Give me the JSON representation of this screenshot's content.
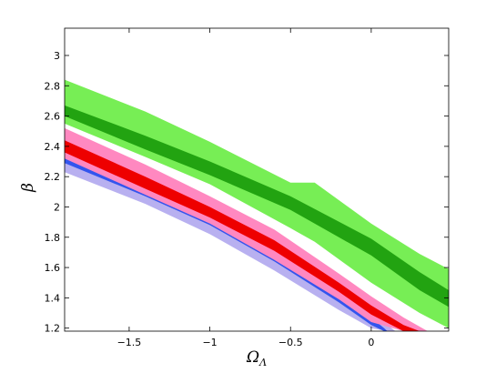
{
  "chart_data": {
    "type": "area",
    "title": "",
    "xlabel": "Ω_Λ",
    "xlabel_main": "Ω",
    "xlabel_sub": "Λ",
    "ylabel": "β",
    "xlim": [
      -1.9,
      0.48
    ],
    "ylim": [
      1.18,
      3.18
    ],
    "xticks": [
      -1.5,
      -1,
      -0.5,
      0
    ],
    "xtick_labels": [
      "−1.5",
      "−1",
      "−0.5",
      "0"
    ],
    "yticks": [
      1.2,
      1.4,
      1.6,
      1.8,
      2,
      2.2,
      2.4,
      2.6,
      2.8,
      3
    ],
    "ytick_labels": [
      "1.2",
      "1.4",
      "1.6",
      "1.8",
      "2",
      "2.2",
      "2.4",
      "2.6",
      "2.8",
      "3"
    ],
    "grid": false,
    "legend": "none",
    "colors": {
      "green_outer": "#77ee55",
      "green_inner": "#22a311",
      "blue_outer": "#b8b0f0",
      "blue_inner": "#3355ee",
      "red_outer": "#ff88c0",
      "red_inner": "#ee0000"
    },
    "series": [
      {
        "color_key": "green_outer",
        "x": [
          -1.9,
          -1.4,
          -1.0,
          -0.5,
          -0.35,
          0.0,
          0.3,
          0.48
        ],
        "upper": [
          2.84,
          2.63,
          2.43,
          2.16,
          2.16,
          1.89,
          1.69,
          1.59
        ],
        "lower": [
          2.55,
          2.33,
          2.15,
          1.86,
          1.77,
          1.5,
          1.3,
          1.2
        ]
      },
      {
        "color_key": "green_inner",
        "x": [
          -1.9,
          -1.4,
          -1.0,
          -0.5,
          0.0,
          0.3,
          0.48
        ],
        "upper": [
          2.67,
          2.47,
          2.3,
          2.07,
          1.79,
          1.57,
          1.45
        ],
        "lower": [
          2.6,
          2.38,
          2.21,
          1.98,
          1.68,
          1.45,
          1.34
        ]
      },
      {
        "color_key": "blue_outer",
        "x": [
          -1.9,
          -1.4,
          -1.0,
          -0.6,
          -0.2,
          0.0,
          0.1,
          0.15
        ],
        "upper": [
          2.36,
          2.14,
          1.95,
          1.72,
          1.45,
          1.3,
          1.22,
          1.18
        ],
        "lower": [
          2.23,
          2.02,
          1.82,
          1.58,
          1.32,
          1.2,
          1.18,
          1.18
        ]
      },
      {
        "color_key": "blue_inner",
        "x": [
          -1.9,
          -1.4,
          -1.0,
          -0.6,
          -0.2,
          0.0,
          0.08,
          0.1
        ],
        "upper": [
          2.33,
          2.11,
          1.92,
          1.68,
          1.42,
          1.27,
          1.2,
          1.18
        ],
        "lower": [
          2.29,
          2.07,
          1.88,
          1.64,
          1.37,
          1.22,
          1.18,
          1.18
        ]
      },
      {
        "color_key": "red_outer",
        "x": [
          -1.9,
          -1.4,
          -1.0,
          -0.6,
          -0.2,
          0.0,
          0.2,
          0.35
        ],
        "upper": [
          2.52,
          2.28,
          2.07,
          1.85,
          1.56,
          1.41,
          1.27,
          1.18
        ],
        "lower": [
          2.32,
          2.08,
          1.89,
          1.65,
          1.39,
          1.24,
          1.18,
          1.18
        ]
      },
      {
        "color_key": "red_inner",
        "x": [
          -1.9,
          -1.4,
          -1.0,
          -0.6,
          -0.2,
          0.0,
          0.2,
          0.3
        ],
        "upper": [
          2.44,
          2.2,
          2.0,
          1.78,
          1.5,
          1.35,
          1.22,
          1.18
        ],
        "lower": [
          2.36,
          2.12,
          1.93,
          1.71,
          1.44,
          1.29,
          1.18,
          1.18
        ]
      }
    ]
  }
}
